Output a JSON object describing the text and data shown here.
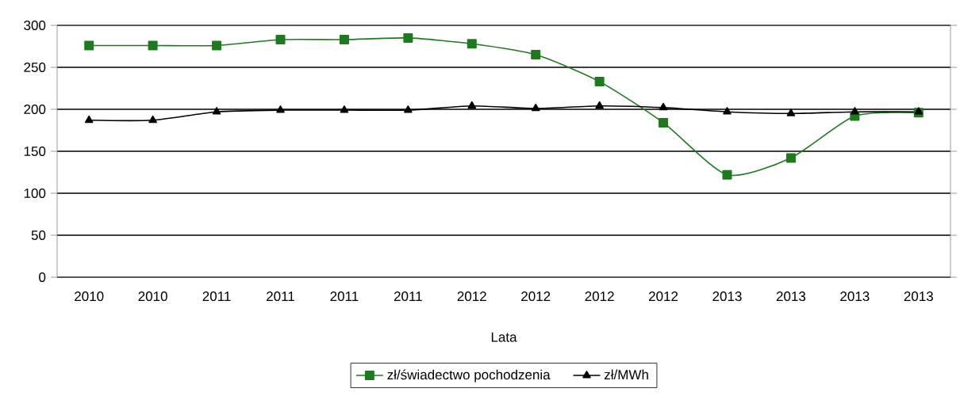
{
  "chart_data": {
    "type": "line",
    "xlabel": "Lata",
    "categories": [
      "2010",
      "2010",
      "2011",
      "2011",
      "2011",
      "2011",
      "2012",
      "2012",
      "2012",
      "2012",
      "2013",
      "2013",
      "2013",
      "2013"
    ],
    "series": [
      {
        "name": "zł/świadectwo pochodzenia",
        "color": "#1f7a1f",
        "marker": "square",
        "values": [
          276,
          276,
          276,
          283,
          283,
          285,
          278,
          265,
          233,
          184,
          122,
          142,
          192,
          196
        ]
      },
      {
        "name": "zł/MWh",
        "color": "#000000",
        "marker": "triangle",
        "values": [
          187,
          187,
          197,
          199,
          199,
          199,
          204,
          201,
          204,
          202,
          197,
          195,
          197,
          197
        ]
      }
    ],
    "ylim": [
      0,
      300
    ],
    "yticks": [
      0,
      50,
      100,
      150,
      200,
      250,
      300
    ],
    "grid": "y",
    "legend": "bottom",
    "line_style": "solid"
  }
}
